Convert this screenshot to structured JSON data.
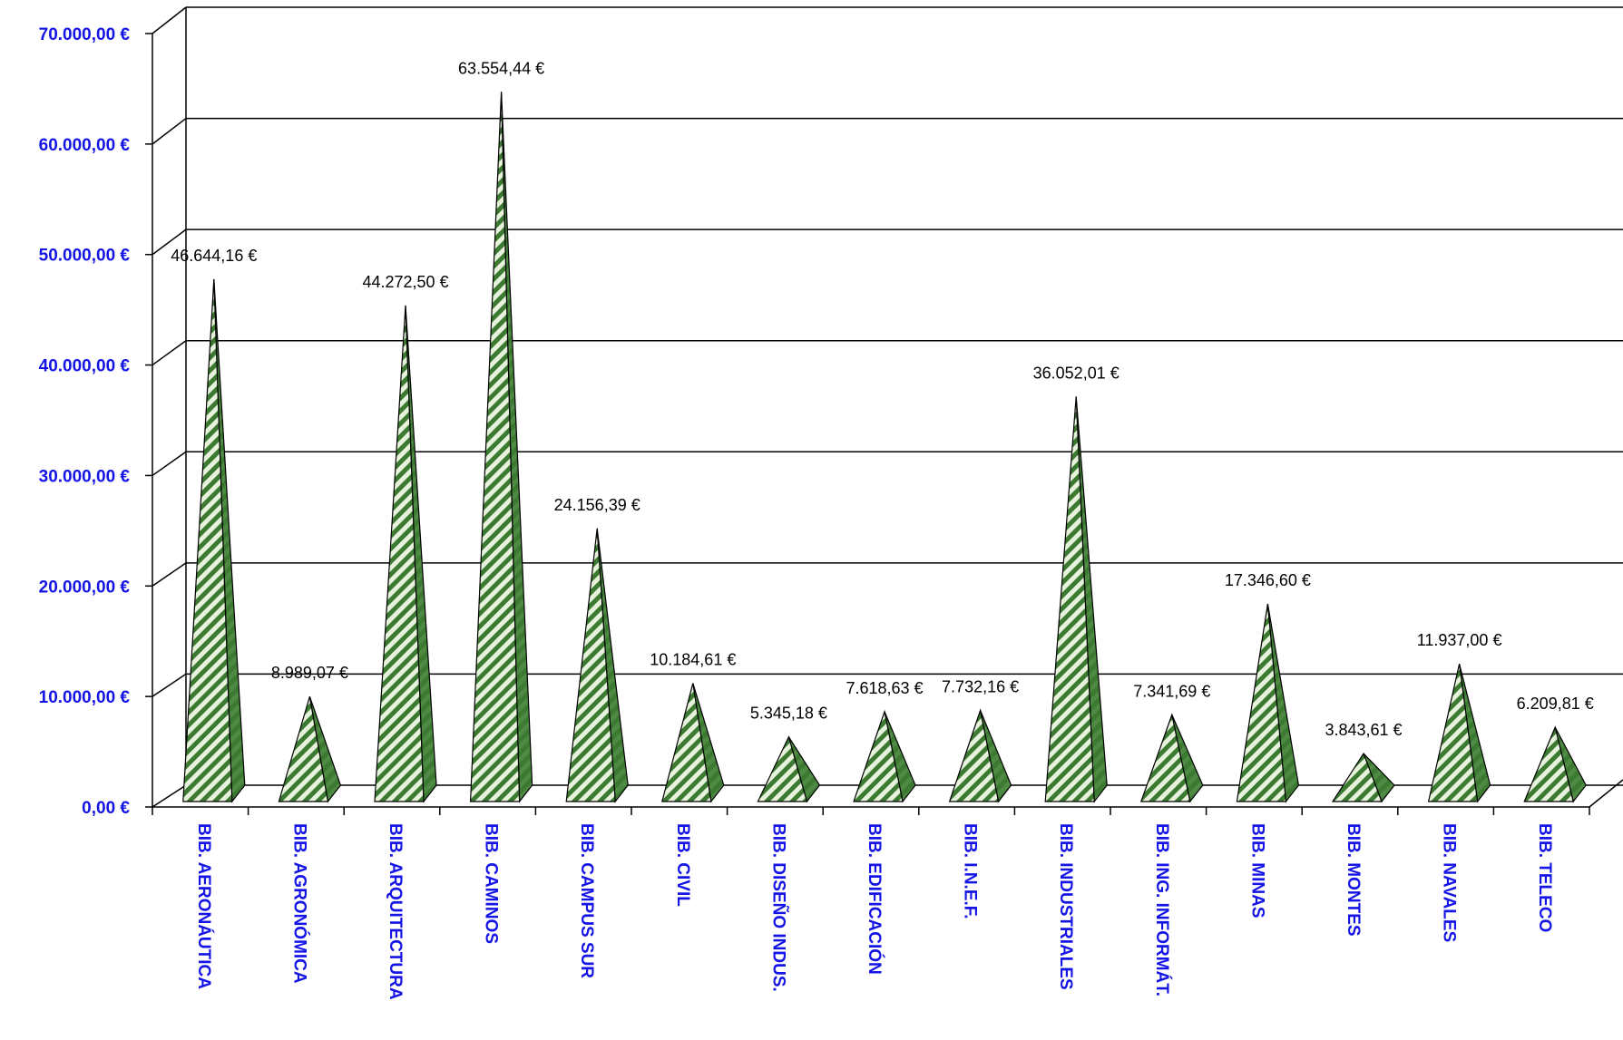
{
  "chart_data": {
    "type": "bar",
    "bar_shape": "pyramid",
    "categories": [
      "BIB. AERONÁUTICA",
      "BIB. AGRONÓMICA",
      "BIB. ARQUITECTURA",
      "BIB. CAMINOS",
      "BIB. CAMPUS SUR",
      "BIB. CIVIL",
      "BIB. DISEÑO INDUS.",
      "BIB. EDIFICACIÓN",
      "BIB. I.N.E.F.",
      "BIB. INDUSTRIALES",
      "BIB. ING. INFORMÁT.",
      "BIB. MINAS",
      "BIB. MONTES",
      "BIB. NAVALES",
      "BIB. TELECO"
    ],
    "values": [
      46644.16,
      8989.07,
      44272.5,
      63554.44,
      24156.39,
      10184.61,
      5345.18,
      7618.63,
      7732.16,
      36052.01,
      7341.69,
      17346.6,
      3843.61,
      11937.0,
      6209.81
    ],
    "data_labels": [
      "46.644,16 €",
      "8.989,07 €",
      "44.272,50 €",
      "63.554,44 €",
      "24.156,39 €",
      "10.184,61 €",
      "5.345,18 €",
      "7.618,63 €",
      "7.732,16 €",
      "36.052,01 €",
      "7.341,69 €",
      "17.346,60 €",
      "3.843,61 €",
      "11.937,00 €",
      "6.209,81 €"
    ],
    "y_tick_labels": [
      "0,00 €",
      "10.000,00 €",
      "20.000,00 €",
      "30.000,00 €",
      "40.000,00 €",
      "50.000,00 €",
      "60.000,00 €",
      "70.000,00 €"
    ],
    "ylim": [
      0,
      70000
    ],
    "y_tick_step": 10000,
    "grid": true,
    "legend": "none",
    "title": "",
    "xlabel": "",
    "ylabel": "",
    "colors": {
      "bar_dark": "#3c7a32",
      "bar_light": "#e6f2dc",
      "bar_side": "#4f8a44",
      "axis_text": "#1414e6",
      "grid": "#000000"
    }
  }
}
